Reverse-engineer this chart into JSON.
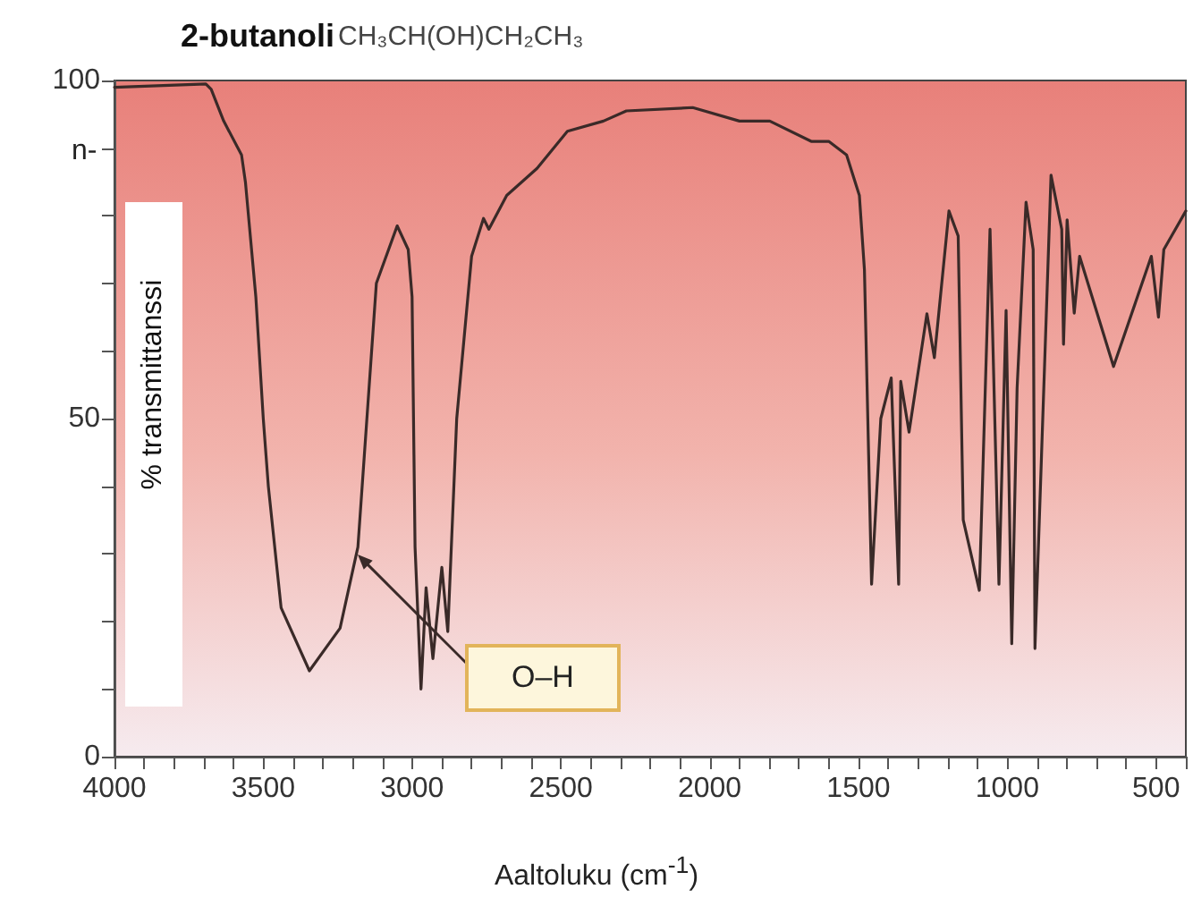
{
  "chart_data": {
    "type": "line",
    "title": "2-butanoli",
    "subtitle": "CH₃CH(OH)CH₂CH₃",
    "xlabel": "Aaltoluku (cm$^{-1}$)",
    "ylabel": "% transmittanssi",
    "annotations": [
      "n-",
      "O–H"
    ],
    "xlim": [
      4000,
      400
    ],
    "xticks": [
      4000,
      {
        "value": 3900,
        "label": null
      },
      {
        "value": 3800,
        "label": null
      },
      {
        "value": 3700,
        "label": null
      },
      {
        "value": 3600,
        "label": null
      },
      3500,
      {
        "value": 3400,
        "label": null
      },
      {
        "value": 3300,
        "label": null
      },
      {
        "value": 3200,
        "label": null
      },
      {
        "value": 3100,
        "label": null
      },
      3000,
      {
        "value": 2900,
        "label": null
      },
      {
        "value": 2800,
        "label": null
      },
      {
        "value": 2700,
        "label": null
      },
      {
        "value": 2600,
        "label": null
      },
      2500,
      {
        "value": 2400,
        "label": null
      },
      {
        "value": 2300,
        "label": null
      },
      {
        "value": 2200,
        "label": null
      },
      {
        "value": 2100,
        "label": null
      },
      2000,
      {
        "value": 1900,
        "label": null
      },
      {
        "value": 1800,
        "label": null
      },
      {
        "value": 1700,
        "label": null
      },
      {
        "value": 1600,
        "label": null
      },
      1500,
      {
        "value": 1400,
        "label": null
      },
      {
        "value": 1300,
        "label": null
      },
      {
        "value": 1200,
        "label": null
      },
      {
        "value": 1100,
        "label": null
      },
      1000,
      {
        "value": 900,
        "label": null
      },
      {
        "value": 800,
        "label": null
      },
      {
        "value": 700,
        "label": null
      },
      {
        "value": 600,
        "label": null
      },
      500,
      {
        "value": 400,
        "label": null
      }
    ],
    "ylim": [
      0,
      100
    ],
    "yticks": [
      0,
      {
        "value": 10,
        "label": null
      },
      {
        "value": 20,
        "label": null
      },
      {
        "value": 30,
        "label": null
      },
      {
        "value": 40,
        "label": null
      },
      50,
      {
        "value": 60,
        "label": null
      },
      {
        "value": 70,
        "label": null
      },
      {
        "value": 80,
        "label": null
      },
      {
        "value": 90,
        "label": null
      },
      100
    ],
    "grid": false,
    "marker": "none",
    "line_style": "solid",
    "series": [
      {
        "color": "#3a2a28",
        "x": [
          4000,
          3693,
          3675,
          3633,
          3573,
          3560,
          3525,
          3500,
          3483,
          3440,
          3345,
          3242,
          3182,
          3120,
          3050,
          3013,
          3000,
          2990,
          2970,
          2953,
          2930,
          2900,
          2880,
          2850,
          2800,
          2760,
          2742,
          2682,
          2580,
          2478,
          2357,
          2280,
          2057,
          1900,
          1798,
          1659,
          1600,
          1540,
          1497,
          1480,
          1456,
          1425,
          1390,
          1365,
          1358,
          1330,
          1270,
          1245,
          1196,
          1165,
          1148,
          1094,
          1058,
          1028,
          1004,
          985,
          967,
          937,
          913,
          907,
          853,
          817,
          811,
          799,
          775,
          757,
          643,
          516,
          492,
          474,
          400
        ],
        "values": [
          99,
          99.5,
          98.7,
          94,
          89,
          85,
          68,
          50,
          40,
          22,
          12.7,
          19,
          31,
          70,
          78.5,
          75,
          68,
          31,
          10,
          25,
          14.5,
          28,
          18.5,
          50,
          74,
          79.6,
          78,
          83,
          87,
          92.5,
          94,
          95.5,
          96,
          94,
          94,
          91,
          91,
          89,
          83,
          72,
          25.5,
          50,
          56,
          25.5,
          55.5,
          48,
          65.5,
          59,
          80.7,
          77,
          35,
          24.6,
          78,
          25.5,
          66,
          16.7,
          54.5,
          82,
          75,
          16,
          86,
          78,
          61,
          79.4,
          65.6,
          74,
          57.7,
          74,
          65,
          75,
          80.7
        ]
      }
    ]
  }
}
